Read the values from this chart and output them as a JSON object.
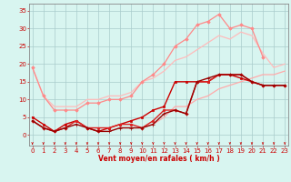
{
  "background_color": "#d8f5f0",
  "grid_color": "#aacccc",
  "xlabel": "Vent moyen/en rafales ( km/h )",
  "ylabel_ticks": [
    0,
    5,
    10,
    15,
    20,
    25,
    30,
    35
  ],
  "xlim": [
    -0.3,
    23.3
  ],
  "ylim": [
    -3,
    37
  ],
  "x_ticks": [
    0,
    1,
    2,
    3,
    4,
    5,
    6,
    7,
    8,
    9,
    10,
    11,
    12,
    13,
    14,
    15,
    16,
    17,
    18,
    19,
    20,
    21,
    22,
    23
  ],
  "series": [
    {
      "x": [
        0,
        1,
        2,
        3,
        4,
        5,
        6,
        7,
        8,
        9,
        10,
        11,
        12,
        13,
        14,
        15,
        16,
        17,
        18,
        19,
        20,
        21,
        22,
        23
      ],
      "y": [
        19,
        11,
        8,
        8,
        8,
        10,
        10,
        11,
        11,
        12,
        15,
        16,
        18,
        21,
        22,
        24,
        26,
        28,
        27,
        29,
        28,
        23,
        19,
        20
      ],
      "color": "#ffbbbb",
      "marker": null,
      "ms": 0,
      "lw": 0.9
    },
    {
      "x": [
        0,
        1,
        2,
        3,
        4,
        5,
        6,
        7,
        8,
        9,
        10,
        11,
        12,
        13,
        14,
        15,
        16,
        17,
        18,
        19,
        20,
        21,
        22,
        23
      ],
      "y": [
        19,
        11,
        7,
        7,
        7,
        9,
        9,
        10,
        10,
        11,
        15,
        17,
        20,
        25,
        27,
        31,
        32,
        34,
        30,
        31,
        30,
        22,
        null,
        null
      ],
      "color": "#ff8888",
      "marker": "D",
      "ms": 1.8,
      "lw": 0.9
    },
    {
      "x": [
        0,
        1,
        2,
        3,
        4,
        5,
        6,
        7,
        8,
        9,
        10,
        11,
        12,
        13,
        14,
        15,
        16,
        17,
        18,
        19,
        20,
        21,
        22,
        23
      ],
      "y": [
        null,
        null,
        null,
        null,
        null,
        null,
        null,
        null,
        null,
        null,
        2,
        3,
        5,
        8,
        8,
        10,
        11,
        13,
        14,
        15,
        16,
        17,
        17,
        18
      ],
      "color": "#ffaaaa",
      "marker": null,
      "ms": 0,
      "lw": 0.9
    },
    {
      "x": [
        0,
        1,
        2,
        3,
        4,
        5,
        6,
        7,
        8,
        9,
        10,
        11,
        12,
        13,
        14,
        15,
        16,
        17,
        18,
        19,
        20,
        21,
        22,
        23
      ],
      "y": [
        5,
        3,
        1,
        3,
        4,
        2,
        1,
        2,
        3,
        4,
        5,
        7,
        8,
        15,
        15,
        15,
        15,
        17,
        17,
        16,
        15,
        14,
        14,
        14
      ],
      "color": "#cc0000",
      "marker": "s",
      "ms": 1.8,
      "lw": 1.0
    },
    {
      "x": [
        0,
        1,
        2,
        3,
        4,
        5,
        6,
        7,
        8,
        9,
        10,
        11,
        12,
        13,
        14,
        15,
        16,
        17,
        18,
        19,
        20,
        21,
        22,
        23
      ],
      "y": [
        4,
        2,
        1,
        2,
        4,
        2,
        2,
        2,
        3,
        3,
        2,
        4,
        7,
        7,
        6,
        15,
        15,
        17,
        17,
        17,
        15,
        14,
        14,
        14
      ],
      "color": "#dd2222",
      "marker": "o",
      "ms": 1.8,
      "lw": 1.0
    },
    {
      "x": [
        0,
        1,
        2,
        3,
        4,
        5,
        6,
        7,
        8,
        9,
        10,
        11,
        12,
        13,
        14,
        15,
        16,
        17,
        18,
        19,
        20,
        21,
        22,
        23
      ],
      "y": [
        4,
        2,
        1,
        2,
        3,
        2,
        1,
        1,
        2,
        2,
        2,
        3,
        6,
        7,
        6,
        15,
        16,
        17,
        17,
        17,
        15,
        14,
        14,
        14
      ],
      "color": "#990000",
      "marker": "+",
      "ms": 2.5,
      "lw": 1.0
    }
  ],
  "arrow_color": "#cc0000",
  "tick_color": "#cc0000",
  "label_color": "#cc0000",
  "spine_color": "#888888",
  "label_fontsize": 5.5,
  "tick_fontsize": 5.0
}
